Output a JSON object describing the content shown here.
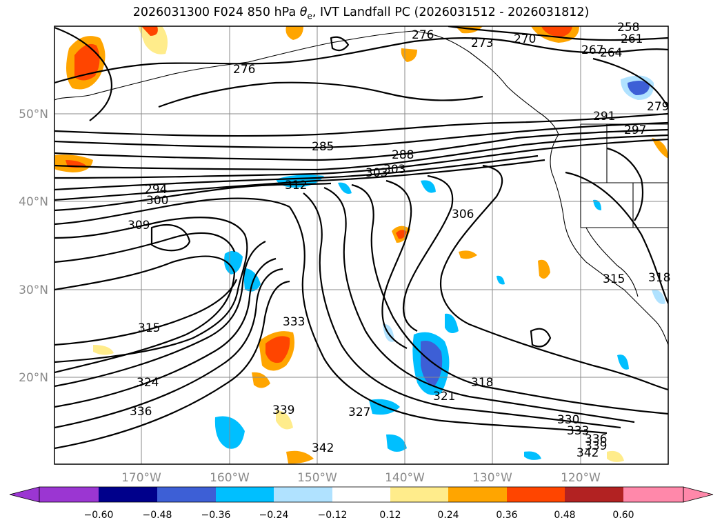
{
  "title": {
    "prefix": "2026031300 F024 850 hPa ",
    "symbol": "θ",
    "symbol_sub": "e",
    "suffix": ", IVT Landfall PC (2026031512 - 2026031812)"
  },
  "lat_labels": [
    "50°N",
    "40°N",
    "30°N",
    "20°N"
  ],
  "lon_labels": [
    "170°W",
    "160°W",
    "150°W",
    "140°W",
    "130°W",
    "120°W"
  ],
  "contour_labels": [
    "258",
    "261",
    "264",
    "267",
    "270",
    "273",
    "276",
    "276",
    "279",
    "285",
    "288",
    "291",
    "294",
    "297",
    "300",
    "303",
    "306",
    "309",
    "312",
    "315",
    "315",
    "318",
    "318",
    "321",
    "324",
    "327",
    "330",
    "333",
    "333",
    "336",
    "336",
    "339",
    "339",
    "342",
    "342",
    "303"
  ],
  "colorbar": {
    "tick_labels": [
      "−0.60",
      "−0.48",
      "−0.36",
      "−0.24",
      "−0.12",
      "0.12",
      "0.24",
      "0.36",
      "0.48",
      "0.60"
    ],
    "colors": [
      "#9b36d2",
      "#00008b",
      "#3d5fd6",
      "#00bfff",
      "#b0e2ff",
      "#ffffff",
      "#ffec8b",
      "#ffa500",
      "#ff4500",
      "#b22222",
      "#ff88aa",
      "#ff88aa"
    ]
  }
}
